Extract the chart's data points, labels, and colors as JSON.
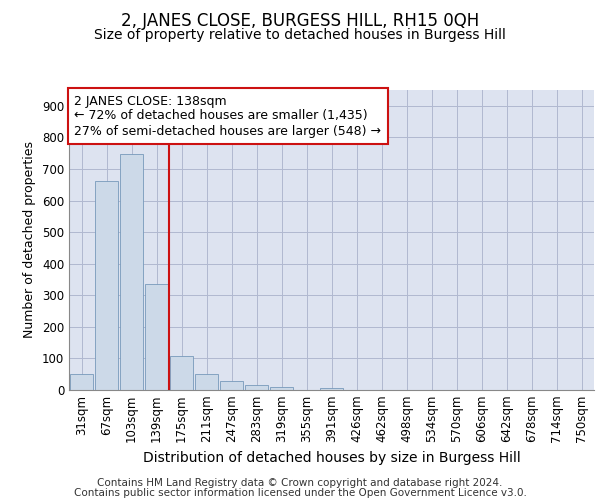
{
  "title": "2, JANES CLOSE, BURGESS HILL, RH15 0QH",
  "subtitle": "Size of property relative to detached houses in Burgess Hill",
  "xlabel": "Distribution of detached houses by size in Burgess Hill",
  "ylabel": "Number of detached properties",
  "categories": [
    "31sqm",
    "67sqm",
    "103sqm",
    "139sqm",
    "175sqm",
    "211sqm",
    "247sqm",
    "283sqm",
    "319sqm",
    "355sqm",
    "391sqm",
    "426sqm",
    "462sqm",
    "498sqm",
    "534sqm",
    "570sqm",
    "606sqm",
    "642sqm",
    "678sqm",
    "714sqm",
    "750sqm"
  ],
  "values": [
    52,
    662,
    748,
    335,
    107,
    52,
    27,
    15,
    10,
    0,
    5,
    0,
    0,
    0,
    0,
    0,
    0,
    0,
    0,
    0,
    0
  ],
  "bar_color": "#ccd9e8",
  "bar_edge_color": "#7799bb",
  "vline_color": "#cc1111",
  "annotation_line1": "2 JANES CLOSE: 138sqm",
  "annotation_line2": "← 72% of detached houses are smaller (1,435)",
  "annotation_line3": "27% of semi-detached houses are larger (548) →",
  "annotation_box_color": "white",
  "annotation_box_edge_color": "#cc1111",
  "ylim": [
    0,
    950
  ],
  "yticks": [
    0,
    100,
    200,
    300,
    400,
    500,
    600,
    700,
    800,
    900
  ],
  "grid_color": "#b0b8d0",
  "background_color": "#dde3f0",
  "footer_line1": "Contains HM Land Registry data © Crown copyright and database right 2024.",
  "footer_line2": "Contains public sector information licensed under the Open Government Licence v3.0.",
  "title_fontsize": 12,
  "subtitle_fontsize": 10,
  "xlabel_fontsize": 10,
  "ylabel_fontsize": 9,
  "tick_fontsize": 8.5,
  "annotation_fontsize": 9,
  "footer_fontsize": 7.5
}
